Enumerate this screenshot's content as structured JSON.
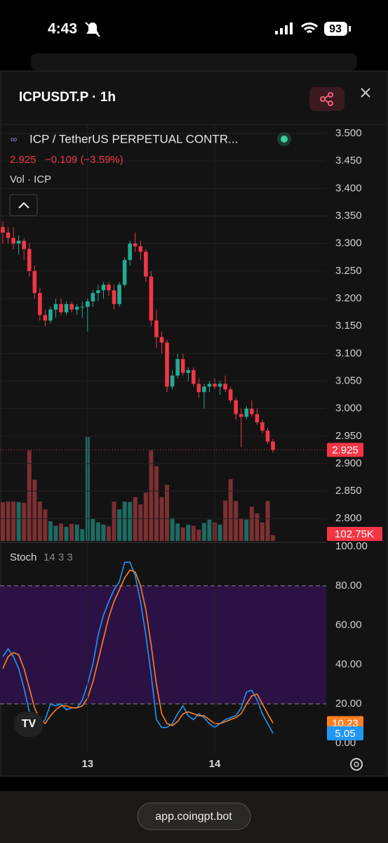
{
  "status_bar": {
    "time": "4:43",
    "battery": "93"
  },
  "header": {
    "title": "ICPUSDT.P · 1h"
  },
  "legend": {
    "symbol": "ICP / TetherUS PERPETUAL CONTR...",
    "last": "2.925",
    "change": "−0.109 (−3.59%)",
    "volume_title": "Vol · ICP"
  },
  "chart_data": [
    {
      "type": "candlestick",
      "up_color": "#22ab94",
      "down_color": "#f23645",
      "open": [
        3.33,
        3.32,
        3.31,
        3.3,
        3.305,
        3.29,
        3.25,
        3.21,
        3.17,
        3.16,
        3.18,
        3.19,
        3.175,
        3.19,
        3.18,
        3.185,
        3.185,
        3.195,
        3.21,
        3.215,
        3.225,
        3.215,
        3.19,
        3.225,
        3.27,
        3.3,
        3.295,
        3.285,
        3.24,
        3.16,
        3.13,
        3.12,
        3.04,
        3.06,
        3.09,
        3.065,
        3.07,
        3.045,
        3.03,
        3.04,
        3.045,
        3.04,
        3.045,
        3.035,
        3.015,
        2.99,
        2.985,
        3.0,
        2.99,
        2.975,
        2.96,
        2.94
      ],
      "high": [
        3.34,
        3.33,
        3.33,
        3.315,
        3.31,
        3.3,
        3.26,
        3.22,
        3.18,
        3.185,
        3.2,
        3.2,
        3.195,
        3.195,
        3.19,
        3.195,
        3.2,
        3.215,
        3.225,
        3.23,
        3.23,
        3.225,
        3.23,
        3.275,
        3.305,
        3.32,
        3.305,
        3.29,
        3.25,
        3.18,
        3.14,
        3.125,
        3.07,
        3.1,
        3.1,
        3.075,
        3.075,
        3.055,
        3.045,
        3.05,
        3.055,
        3.05,
        3.06,
        3.04,
        3.02,
        3.0,
        3.005,
        3.015,
        3.0,
        2.98,
        2.965,
        2.945
      ],
      "low": [
        3.3,
        3.3,
        3.29,
        3.28,
        3.27,
        3.24,
        3.2,
        3.16,
        3.15,
        3.155,
        3.165,
        3.17,
        3.17,
        3.175,
        3.17,
        3.165,
        3.14,
        3.185,
        3.195,
        3.2,
        3.205,
        3.18,
        3.185,
        3.22,
        3.26,
        3.285,
        3.27,
        3.23,
        3.15,
        3.11,
        3.1,
        3.03,
        3.035,
        3.055,
        3.06,
        3.05,
        3.04,
        3.02,
        3.0,
        3.03,
        3.035,
        3.025,
        3.03,
        3.01,
        2.98,
        2.93,
        2.98,
        2.985,
        2.97,
        2.955,
        2.935,
        2.92
      ],
      "close": [
        3.32,
        3.31,
        3.3,
        3.305,
        3.29,
        3.25,
        3.21,
        3.17,
        3.16,
        3.18,
        3.19,
        3.175,
        3.19,
        3.18,
        3.185,
        3.185,
        3.195,
        3.21,
        3.215,
        3.225,
        3.215,
        3.19,
        3.225,
        3.27,
        3.3,
        3.295,
        3.285,
        3.24,
        3.16,
        3.13,
        3.12,
        3.04,
        3.06,
        3.09,
        3.065,
        3.07,
        3.045,
        3.03,
        3.04,
        3.045,
        3.04,
        3.045,
        3.035,
        3.015,
        2.99,
        2.985,
        3.0,
        2.99,
        2.975,
        2.96,
        2.94,
        2.925
      ],
      "ylim": [
        2.7595,
        3.5153
      ],
      "yticks": [
        {
          "value": 3.5,
          "label": "3.500"
        },
        {
          "value": 3.45,
          "label": "3.450"
        },
        {
          "value": 3.4,
          "label": "3.400"
        },
        {
          "value": 3.35,
          "label": "3.350"
        },
        {
          "value": 3.3,
          "label": "3.300"
        },
        {
          "value": 3.25,
          "label": "3.250"
        },
        {
          "value": 3.2,
          "label": "3.200"
        },
        {
          "value": 3.15,
          "label": "3.150"
        },
        {
          "value": 3.1,
          "label": "3.100"
        },
        {
          "value": 3.05,
          "label": "3.050"
        },
        {
          "value": 3.0,
          "label": "3.000"
        },
        {
          "value": 2.95,
          "label": "2.950"
        },
        {
          "value": 2.9,
          "label": "2.900"
        },
        {
          "value": 2.85,
          "label": "2.850"
        },
        {
          "value": 2.8,
          "label": "2.800"
        }
      ],
      "xticks": [
        {
          "value": 16,
          "label": "13"
        },
        {
          "value": 40,
          "label": "14"
        }
      ],
      "grid": true
    },
    {
      "type": "bar",
      "title": "Vol · ICP",
      "up_color": "#1d6b62",
      "down_color": "#7c3032",
      "values": [
        690000,
        700000,
        700000,
        690000,
        680000,
        1610000,
        1090000,
        700000,
        560000,
        350000,
        270000,
        310000,
        250000,
        300000,
        290000,
        210000,
        1850000,
        390000,
        330000,
        290000,
        260000,
        700000,
        560000,
        700000,
        690000,
        780000,
        650000,
        860000,
        1610000,
        1330000,
        780000,
        1000000,
        410000,
        310000,
        240000,
        290000,
        270000,
        200000,
        320000,
        380000,
        330000,
        290000,
        720000,
        1100000,
        710000,
        400000,
        380000,
        610000,
        490000,
        330000,
        710000,
        102750
      ],
      "last_value_label": "102.75K",
      "ylim": [
        0,
        2000000
      ]
    },
    {
      "type": "line",
      "title": "Stoch",
      "params": "14 3 3",
      "series": [
        {
          "name": "%K",
          "color": "#2196f3",
          "values": [
            44,
            48,
            44,
            38,
            28,
            16,
            10,
            9,
            12,
            20,
            19,
            20,
            17,
            18,
            18,
            22,
            30,
            40,
            55,
            65,
            72,
            78,
            82,
            92,
            92,
            85,
            72,
            55,
            35,
            12,
            8,
            8,
            10,
            15,
            19,
            14,
            12,
            15,
            13,
            10,
            8,
            10,
            12,
            13,
            14,
            18,
            26,
            27,
            22,
            15,
            10,
            5.05
          ]
        },
        {
          "name": "%D",
          "color": "#ff7f27",
          "values": [
            38,
            44,
            46,
            45,
            38,
            28,
            18,
            12,
            10,
            14,
            17,
            19,
            19,
            18,
            18,
            19,
            23,
            31,
            42,
            53,
            64,
            72,
            78,
            84,
            88,
            87,
            80,
            68,
            50,
            30,
            15,
            10,
            9,
            11,
            15,
            16,
            15,
            14,
            14,
            12,
            10,
            10,
            11,
            12,
            13,
            15,
            20,
            24,
            25,
            20,
            15,
            10.23
          ]
        }
      ],
      "band": [
        20,
        80
      ],
      "band_color": "#2c1244",
      "ylim": [
        -5,
        102.1
      ],
      "yticks": [
        {
          "value": 100,
          "label": "100.00"
        },
        {
          "value": 80,
          "label": "80.00"
        },
        {
          "value": 60,
          "label": "60.00"
        },
        {
          "value": 40,
          "label": "40.00"
        },
        {
          "value": 20,
          "label": "20.00"
        },
        {
          "value": 0,
          "label": "0.00"
        }
      ]
    }
  ],
  "url": "app.coingpt.bot"
}
